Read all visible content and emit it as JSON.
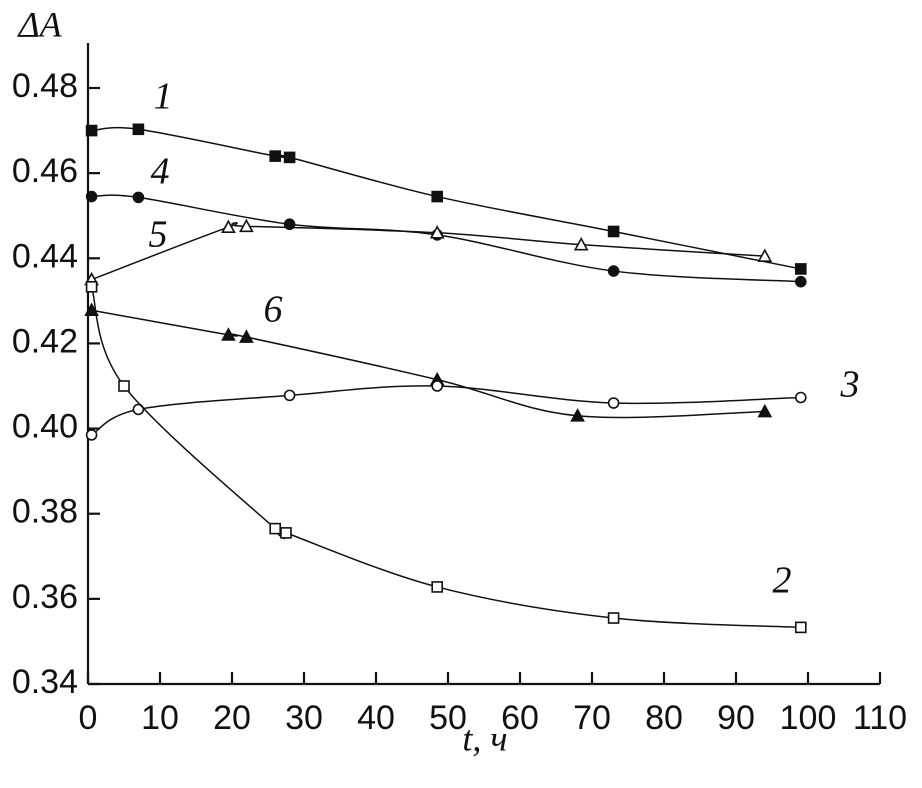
{
  "chart_data": {
    "type": "line",
    "y_label": "ΔA",
    "x_label": "t, ч",
    "xlim": [
      0,
      110
    ],
    "xticks": [
      0,
      10,
      20,
      30,
      40,
      50,
      60,
      70,
      80,
      90,
      100,
      110
    ],
    "ylim": [
      0.34,
      0.49
    ],
    "yticks": [
      0.34,
      0.36,
      0.38,
      {
        "value": 0.4,
        "label": "0.40"
      },
      0.42,
      0.44,
      0.46,
      0.48
    ],
    "series": [
      {
        "name": "1",
        "color": "#111111",
        "marker": "square-filled",
        "x": [
          0.5,
          7,
          26,
          28,
          48.5,
          73,
          99
        ],
        "values": [
          0.47,
          0.4703,
          0.464,
          0.4637,
          0.4545,
          0.4463,
          0.4375
        ]
      },
      {
        "name": "4",
        "color": "#111111",
        "marker": "circle-filled",
        "x": [
          0.5,
          7,
          28,
          48.5,
          73,
          99
        ],
        "values": [
          0.4545,
          0.4543,
          0.448,
          0.4455,
          0.437,
          0.4345
        ]
      },
      {
        "name": "5",
        "color": "#111111",
        "marker": "triangle-open",
        "x": [
          0.5,
          19.5,
          22,
          48.5,
          68.5,
          94
        ],
        "values": [
          0.435,
          0.4473,
          0.4475,
          0.446,
          0.4432,
          0.4405
        ]
      },
      {
        "name": "6",
        "color": "#111111",
        "marker": "triangle-filled",
        "x": [
          0.5,
          19.5,
          22,
          48.5,
          68,
          94
        ],
        "values": [
          0.4278,
          0.422,
          0.4215,
          0.4115,
          0.403,
          0.404
        ]
      },
      {
        "name": "3",
        "color": "#111111",
        "marker": "circle-open",
        "x": [
          0.5,
          7,
          28,
          48.5,
          73,
          99
        ],
        "values": [
          0.3985,
          0.4045,
          0.4078,
          0.41,
          0.406,
          0.4073
        ]
      },
      {
        "name": "2",
        "color": "#111111",
        "marker": "square-open",
        "x": [
          0.5,
          5,
          26,
          27.5,
          48.5,
          73,
          99
        ],
        "values": [
          0.4333,
          0.41,
          0.3765,
          0.3755,
          0.3628,
          0.3555,
          0.3533
        ]
      }
    ]
  }
}
